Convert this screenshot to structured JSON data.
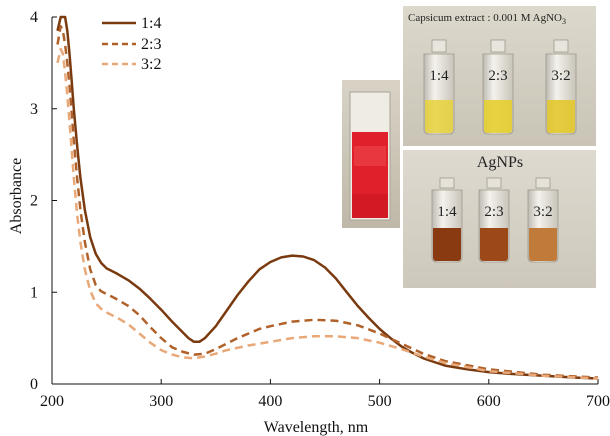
{
  "chart_data": {
    "type": "line",
    "xlabel": "Wavelength, nm",
    "ylabel": "Absorbance",
    "xlim": [
      200,
      700
    ],
    "ylim": [
      0,
      4
    ],
    "x_ticks": [
      200,
      300,
      400,
      500,
      600,
      700
    ],
    "y_ticks": [
      0,
      1,
      2,
      3,
      4
    ],
    "grid": false,
    "legend_position": "top-left",
    "series": [
      {
        "name": "1:4",
        "color": "#7a3a10",
        "dash": "solid",
        "x": [
          205,
          208,
          210,
          212,
          214,
          216,
          218,
          220,
          223,
          226,
          230,
          235,
          240,
          245,
          250,
          255,
          260,
          270,
          280,
          290,
          300,
          310,
          320,
          325,
          330,
          335,
          340,
          350,
          360,
          370,
          380,
          390,
          400,
          410,
          420,
          430,
          440,
          450,
          460,
          470,
          480,
          490,
          500,
          510,
          520,
          530,
          540,
          550,
          560,
          580,
          600,
          620,
          650,
          680,
          700
        ],
        "y": [
          3.85,
          4.0,
          4.0,
          4.0,
          3.85,
          3.6,
          3.3,
          3.0,
          2.6,
          2.25,
          1.9,
          1.6,
          1.42,
          1.32,
          1.26,
          1.23,
          1.2,
          1.13,
          1.04,
          0.93,
          0.81,
          0.68,
          0.56,
          0.5,
          0.46,
          0.46,
          0.5,
          0.63,
          0.8,
          0.97,
          1.12,
          1.25,
          1.33,
          1.38,
          1.4,
          1.39,
          1.35,
          1.27,
          1.15,
          1.0,
          0.85,
          0.72,
          0.6,
          0.5,
          0.41,
          0.34,
          0.28,
          0.24,
          0.2,
          0.16,
          0.13,
          0.11,
          0.09,
          0.07,
          0.06
        ]
      },
      {
        "name": "2:3",
        "color": "#b0612a",
        "dash": "dashed",
        "x": [
          205,
          208,
          210,
          212,
          214,
          216,
          218,
          220,
          223,
          226,
          230,
          235,
          240,
          245,
          250,
          255,
          260,
          270,
          280,
          290,
          300,
          310,
          320,
          330,
          340,
          350,
          360,
          370,
          380,
          390,
          400,
          420,
          440,
          460,
          480,
          500,
          520,
          540,
          560,
          600,
          650,
          700
        ],
        "y": [
          3.7,
          3.9,
          3.85,
          3.7,
          3.5,
          3.25,
          2.95,
          2.65,
          2.25,
          1.9,
          1.55,
          1.25,
          1.08,
          1.01,
          0.98,
          0.95,
          0.92,
          0.85,
          0.75,
          0.62,
          0.5,
          0.4,
          0.35,
          0.32,
          0.33,
          0.38,
          0.44,
          0.5,
          0.55,
          0.6,
          0.63,
          0.68,
          0.7,
          0.69,
          0.64,
          0.55,
          0.44,
          0.33,
          0.25,
          0.16,
          0.1,
          0.07
        ]
      },
      {
        "name": "3:2",
        "color": "#e8a878",
        "dash": "dashed",
        "x": [
          205,
          208,
          210,
          212,
          214,
          216,
          218,
          220,
          223,
          226,
          230,
          235,
          240,
          245,
          250,
          255,
          260,
          270,
          280,
          290,
          300,
          310,
          320,
          330,
          340,
          350,
          360,
          380,
          400,
          420,
          440,
          460,
          480,
          500,
          520,
          540,
          560,
          600,
          650,
          700
        ],
        "y": [
          3.5,
          3.65,
          3.6,
          3.4,
          3.15,
          2.85,
          2.55,
          2.25,
          1.85,
          1.55,
          1.25,
          1.02,
          0.88,
          0.82,
          0.78,
          0.75,
          0.72,
          0.65,
          0.55,
          0.45,
          0.37,
          0.32,
          0.29,
          0.28,
          0.3,
          0.33,
          0.37,
          0.42,
          0.46,
          0.5,
          0.52,
          0.52,
          0.5,
          0.45,
          0.38,
          0.3,
          0.23,
          0.14,
          0.09,
          0.06
        ]
      }
    ]
  },
  "inset": {
    "title": "Capsicum extract : 0.001 M AgNO",
    "title_subscript": "3",
    "top_labels": [
      "1:4",
      "2:3",
      "3:2"
    ],
    "bottom_title": "AgNPs",
    "bottom_labels": [
      "1:4",
      "2:3",
      "3:2"
    ],
    "colors": {
      "top_liquid": "#e8d23a",
      "bottom_liquid": [
        "#8a3a10",
        "#9c4818",
        "#c07a3a"
      ],
      "cuvette_liquid": "#e0202a"
    }
  }
}
